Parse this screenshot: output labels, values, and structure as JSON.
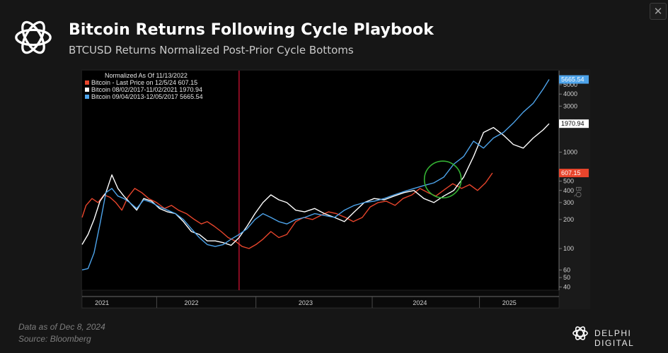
{
  "header": {
    "title": "Bitcoin Returns Following Cycle Playbook",
    "subtitle": "BTCUSD Returns Normalized Post-Prior Cycle Bottoms",
    "close_label": "✕"
  },
  "footer": {
    "note_date": "Data as of Dec 8, 2024",
    "note_source": "Source: Bloomberg",
    "brand": "DELPHI DIGITAL"
  },
  "colors": {
    "background": "#161616",
    "plot_background": "#000000",
    "series_2024": "#e8452c",
    "series_2021": "#ffffff",
    "series_2017": "#4da3ea",
    "cycle_marker": "#c01030",
    "highlight_circle": "#34b233"
  },
  "chart_data": {
    "type": "line",
    "title": "",
    "legend_heading": "Normalized As Of 11/13/2022",
    "legend_position": "top-left",
    "xlabel": "",
    "ylabel": "",
    "y_scale": "log",
    "ylim": [
      37,
      7000
    ],
    "grid": false,
    "x_tick_labels": [
      "2021",
      "2022",
      "2023",
      "2024",
      "2025"
    ],
    "y_tick_labels": [
      "5000",
      "4000",
      "3000",
      "1000",
      "500",
      "400",
      "300",
      "200",
      "100",
      "60",
      "50",
      "40"
    ],
    "last_value_labels": [
      "5665.54",
      "1970.94",
      "607.15"
    ],
    "side_label": "BQ",
    "series": [
      {
        "name": "Bitcoin - Last Price on 12/5/24  607.15",
        "color": "#e8452c",
        "x": [
          2020.8,
          2020.84,
          2020.9,
          2020.96,
          2021.02,
          2021.08,
          2021.14,
          2021.2,
          2021.26,
          2021.33,
          2021.4,
          2021.47,
          2021.55,
          2021.63,
          2021.7,
          2021.77,
          2021.85,
          2021.93,
          2022.0,
          2022.06,
          2022.13,
          2022.2,
          2022.27,
          2022.34,
          2022.41,
          2022.48,
          2022.55,
          2022.62,
          2022.7,
          2022.78,
          2022.86,
          2022.95,
          2023.03,
          2023.12,
          2023.2,
          2023.28,
          2023.36,
          2023.45,
          2023.53,
          2023.62,
          2023.7,
          2023.78,
          2023.86,
          2023.95,
          2024.03,
          2024.12,
          2024.2,
          2024.28,
          2024.36,
          2024.45,
          2024.53,
          2024.62,
          2024.7,
          2024.78,
          2024.86,
          2024.93
        ],
        "values": [
          210,
          280,
          330,
          300,
          360,
          340,
          300,
          250,
          340,
          420,
          380,
          330,
          300,
          260,
          280,
          250,
          230,
          200,
          180,
          190,
          170,
          150,
          130,
          120,
          105,
          100,
          110,
          125,
          150,
          130,
          140,
          190,
          210,
          200,
          220,
          240,
          230,
          210,
          190,
          210,
          270,
          300,
          310,
          280,
          330,
          360,
          420,
          380,
          350,
          410,
          470,
          420,
          460,
          400,
          480,
          607.15
        ]
      },
      {
        "name": "Bitcoin 08/02/2017-11/02/2021 1970.94",
        "color": "#ffffff",
        "x": [
          2020.8,
          2020.86,
          2020.92,
          2020.98,
          2021.04,
          2021.1,
          2021.16,
          2021.22,
          2021.28,
          2021.35,
          2021.42,
          2021.5,
          2021.58,
          2021.66,
          2021.74,
          2021.82,
          2021.9,
          2021.98,
          2022.06,
          2022.14,
          2022.22,
          2022.3,
          2022.38,
          2022.46,
          2022.54,
          2022.62,
          2022.7,
          2022.78,
          2022.86,
          2022.95,
          2023.04,
          2023.14,
          2023.24,
          2023.34,
          2023.44,
          2023.54,
          2023.64,
          2023.74,
          2023.84,
          2023.94,
          2024.04,
          2024.14,
          2024.24,
          2024.34,
          2024.44,
          2024.54,
          2024.64,
          2024.74,
          2024.84,
          2024.94,
          2025.04,
          2025.14,
          2025.24,
          2025.34,
          2025.44,
          2025.5
        ],
        "values": [
          110,
          140,
          200,
          310,
          380,
          580,
          420,
          350,
          300,
          250,
          330,
          310,
          260,
          240,
          230,
          190,
          150,
          140,
          120,
          120,
          115,
          108,
          130,
          170,
          230,
          300,
          360,
          320,
          300,
          250,
          240,
          260,
          230,
          210,
          190,
          240,
          300,
          330,
          320,
          350,
          380,
          400,
          330,
          300,
          350,
          400,
          550,
          900,
          1600,
          1800,
          1500,
          1200,
          1100,
          1400,
          1700,
          1970.94
        ]
      },
      {
        "name": "Bitcoin 09/04/2013-12/05/2017 5665.54",
        "color": "#4da3ea",
        "x": [
          2020.8,
          2020.86,
          2020.92,
          2020.98,
          2021.04,
          2021.1,
          2021.16,
          2021.22,
          2021.28,
          2021.35,
          2021.42,
          2021.5,
          2021.58,
          2021.66,
          2021.74,
          2021.82,
          2021.9,
          2021.98,
          2022.06,
          2022.14,
          2022.22,
          2022.3,
          2022.38,
          2022.46,
          2022.54,
          2022.62,
          2022.7,
          2022.78,
          2022.86,
          2022.95,
          2023.04,
          2023.14,
          2023.24,
          2023.34,
          2023.44,
          2023.54,
          2023.64,
          2023.74,
          2023.84,
          2023.94,
          2024.04,
          2024.14,
          2024.24,
          2024.34,
          2024.44,
          2024.54,
          2024.64,
          2024.74,
          2024.84,
          2024.94,
          2025.04,
          2025.14,
          2025.24,
          2025.34,
          2025.44,
          2025.5
        ],
        "values": [
          60,
          62,
          90,
          180,
          380,
          420,
          350,
          330,
          300,
          260,
          320,
          300,
          270,
          250,
          230,
          200,
          160,
          130,
          110,
          105,
          110,
          125,
          140,
          160,
          200,
          230,
          210,
          190,
          180,
          200,
          210,
          230,
          220,
          210,
          250,
          280,
          300,
          310,
          330,
          360,
          390,
          420,
          450,
          480,
          550,
          750,
          900,
          1300,
          1100,
          1400,
          1600,
          2000,
          2600,
          3200,
          4500,
          5665.54
        ]
      }
    ],
    "annotations": {
      "vertical_marker_x": 2022.38,
      "highlight_circle_center": {
        "x": 2024.43,
        "y": 520
      }
    }
  }
}
